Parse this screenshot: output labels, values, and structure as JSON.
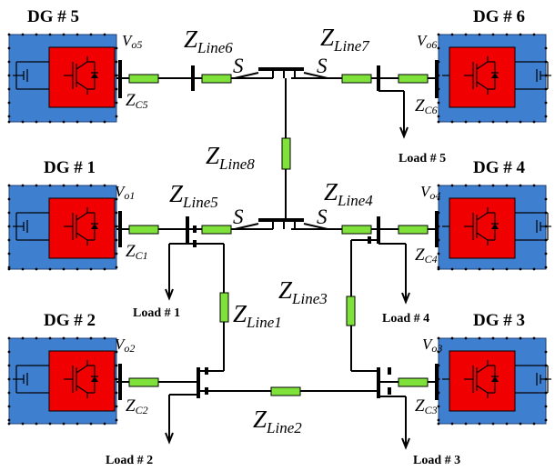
{
  "dgs": {
    "dg5": {
      "title": "DG # 5",
      "vo_main": "V",
      "vo_sub": "o5",
      "zc_main": "Z",
      "zc_sub": "C5"
    },
    "dg6": {
      "title": "DG # 6",
      "vo_main": "V",
      "vo_sub": "o6",
      "zc_main": "Z",
      "zc_sub": "C6"
    },
    "dg1": {
      "title": "DG # 1",
      "vo_main": "V",
      "vo_sub": "o1",
      "zc_main": "Z",
      "zc_sub": "C1"
    },
    "dg4": {
      "title": "DG # 4",
      "vo_main": "V",
      "vo_sub": "o4",
      "zc_main": "Z",
      "zc_sub": "C4"
    },
    "dg2": {
      "title": "DG # 2",
      "vo_main": "V",
      "vo_sub": "o2",
      "zc_main": "Z",
      "zc_sub": "C2"
    },
    "dg3": {
      "title": "DG # 3",
      "vo_main": "V",
      "vo_sub": "o3",
      "zc_main": "Z",
      "zc_sub": "C3"
    }
  },
  "lines": {
    "line1": {
      "main": "Z",
      "sub": "Line1"
    },
    "line2": {
      "main": "Z",
      "sub": "Line2"
    },
    "line3": {
      "main": "Z",
      "sub": "Line3"
    },
    "line4": {
      "main": "Z",
      "sub": "Line4"
    },
    "line5": {
      "main": "Z",
      "sub": "Line5"
    },
    "line6": {
      "main": "Z",
      "sub": "Line6"
    },
    "line7": {
      "main": "Z",
      "sub": "Line7"
    },
    "line8": {
      "main": "Z",
      "sub": "Line8"
    }
  },
  "switches": {
    "label": "S"
  },
  "loads": {
    "load1": "Load # 1",
    "load2": "Load # 2",
    "load3": "Load # 3",
    "load4": "Load # 4",
    "load5": "Load # 5"
  },
  "colors": {
    "dg_outer": "#3f7fd0",
    "dg_inner": "#f00000",
    "impedance": "#7fe23a"
  }
}
